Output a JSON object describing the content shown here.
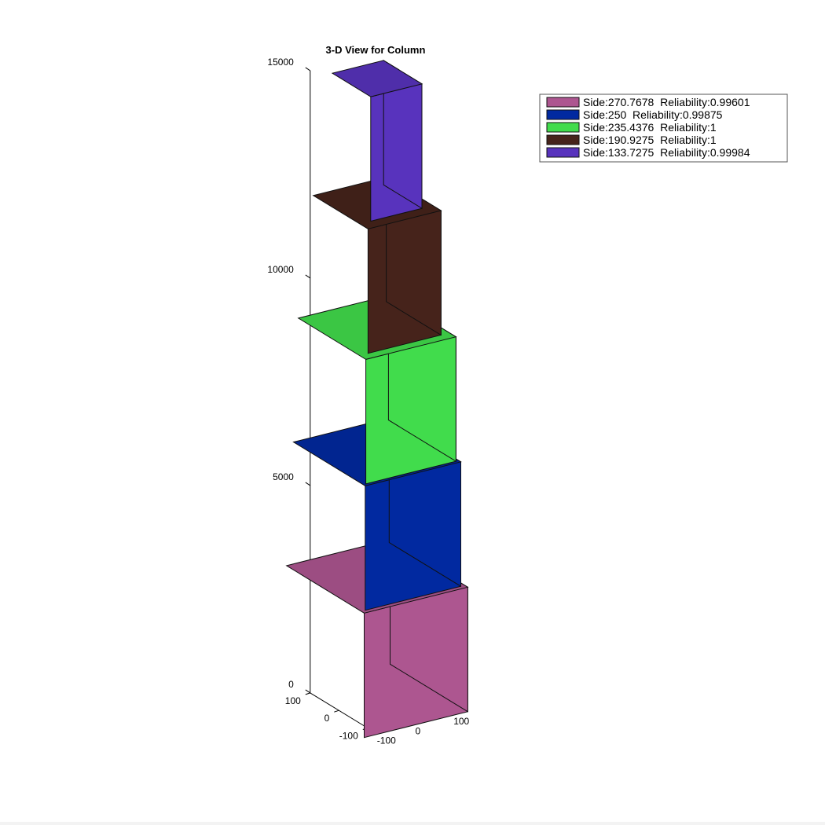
{
  "chart_data": {
    "type": "3d-stacked-prism",
    "title": "3-D View for Column",
    "z_axis": {
      "ticks": [
        0,
        5000,
        10000,
        15000
      ],
      "range": [
        0,
        15000
      ]
    },
    "x_axis": {
      "ticks": [
        -100,
        0,
        100
      ],
      "range": [
        -100,
        100
      ]
    },
    "y_axis": {
      "ticks": [
        -100,
        0,
        100
      ],
      "range": [
        -100,
        100
      ]
    },
    "grid": false,
    "legend_position": "top-right",
    "segments": [
      {
        "side": 270.7678,
        "reliability": 0.99601,
        "z_bottom": 0,
        "z_top": 3000,
        "color": "#ad5690",
        "label": "Side:270.7678  Reliability:0.99601"
      },
      {
        "side": 250,
        "reliability": 0.99875,
        "z_bottom": 3000,
        "z_top": 6000,
        "color": "#0129a0",
        "label": "Side:250  Reliability:0.99875"
      },
      {
        "side": 235.4376,
        "reliability": 1,
        "z_bottom": 6000,
        "z_top": 9000,
        "color": "#41dc4c",
        "label": "Side:235.4376  Reliability:1"
      },
      {
        "side": 190.9275,
        "reliability": 1,
        "z_bottom": 9000,
        "z_top": 12000,
        "color": "#46231b",
        "label": "Side:190.9275  Reliability:1"
      },
      {
        "side": 133.7275,
        "reliability": 0.99984,
        "z_bottom": 12000,
        "z_top": 15000,
        "color": "#5833bd",
        "label": "Side:133.7275  Reliability:0.99984"
      }
    ]
  }
}
